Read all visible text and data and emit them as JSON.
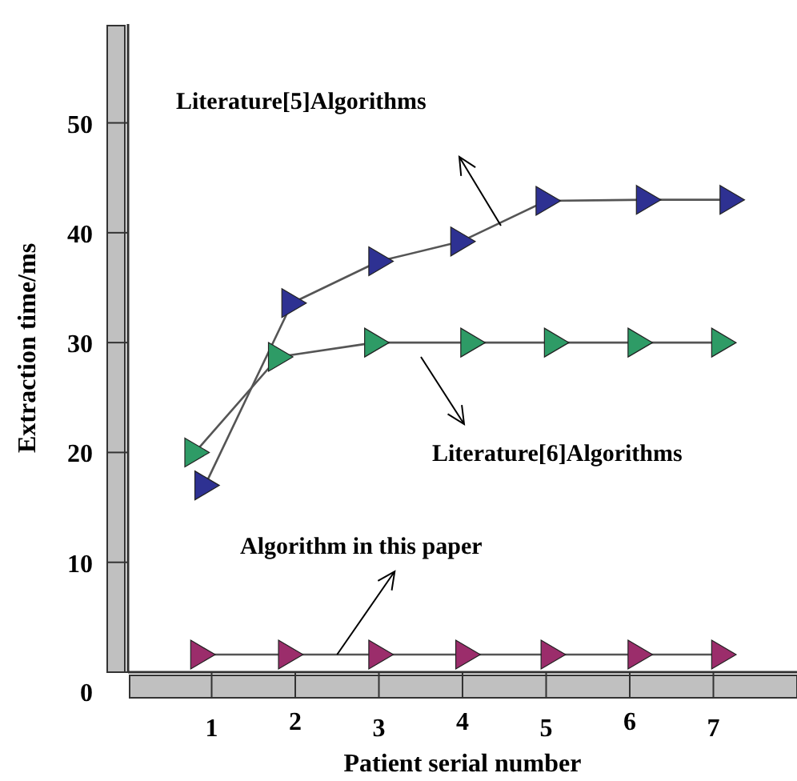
{
  "chart_data": {
    "type": "line",
    "xlabel": "Patient serial number",
    "ylabel": "Extraction time/ms",
    "xlim": [
      0,
      8
    ],
    "ylim": [
      0,
      59
    ],
    "xticks": [
      1,
      2,
      3,
      4,
      5,
      6,
      7
    ],
    "yticks": [
      0,
      10,
      20,
      30,
      40,
      50
    ],
    "grid": false,
    "marker": "triangle",
    "line_style": "solid",
    "series": [
      {
        "color": "#2e3192",
        "x": [
          0.92,
          1.96,
          3.0,
          3.98,
          5.0,
          6.2,
          7.2
        ],
        "values": [
          17,
          33.6,
          37.4,
          39.2,
          42.9,
          43,
          43
        ]
      },
      {
        "color": "#2e9b66",
        "x": [
          0.8,
          1.8,
          2.95,
          4.1,
          5.1,
          6.1,
          7.1
        ],
        "values": [
          20,
          28.7,
          30,
          30,
          30,
          30,
          30
        ]
      },
      {
        "color": "#9b2d6b",
        "x": [
          0.87,
          1.92,
          3.0,
          4.04,
          5.06,
          6.1,
          7.1
        ],
        "values": [
          1.6,
          1.6,
          1.6,
          1.6,
          1.6,
          1.6,
          1.6
        ]
      }
    ],
    "annotations": [
      "Literature[5]Algorithms",
      "Literature[6]Algorithms",
      {
        "text": "Algorithm in this paper",
        "x": 2.5,
        "y": 1.6
      }
    ]
  }
}
